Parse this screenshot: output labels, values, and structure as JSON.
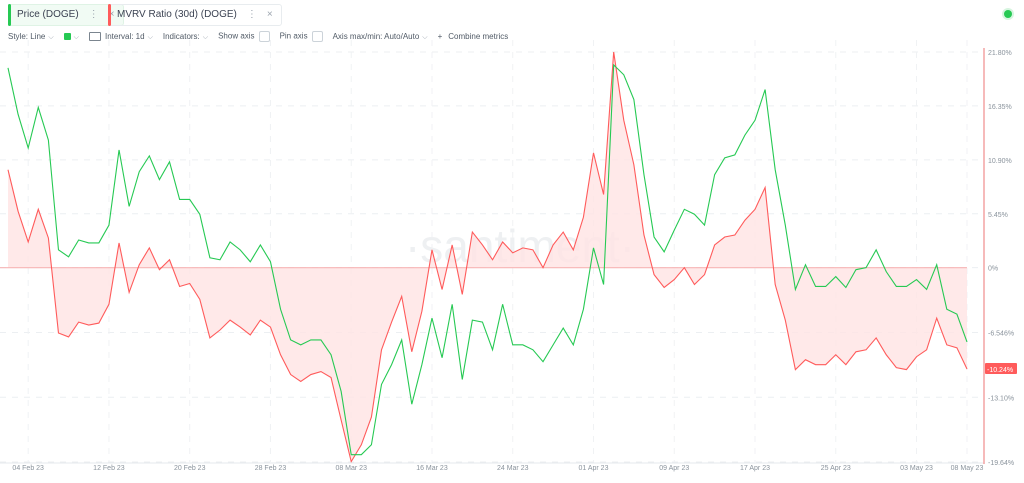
{
  "tabs": [
    {
      "label": "Price (DOGE)",
      "color": "#26c953"
    },
    {
      "label": "MVRV Ratio (30d) (DOGE)",
      "color": "#ff5b5b"
    }
  ],
  "toolbar": {
    "style": "Style: Line",
    "interval": "Interval: 1d",
    "indicators": "Indicators:",
    "show_axis": "Show axis",
    "pin_axis": "Pin axis",
    "axis_maxmin": "Axis max/min: Auto/Auto",
    "combine": "Combine metrics",
    "combine_icon": "+"
  },
  "status_color": "#26c953",
  "watermark": "·santiment·",
  "chart_data": {
    "type": "line",
    "x_start": "2023-02-02",
    "x_end": "2023-05-08",
    "x_ticks": [
      "04 Feb 23",
      "12 Feb 23",
      "20 Feb 23",
      "28 Feb 23",
      "08 Mar 23",
      "16 Mar 23",
      "24 Mar 23",
      "01 Apr 23",
      "09 Apr 23",
      "17 Apr 23",
      "25 Apr 23",
      "03 May 23",
      "08 May 23"
    ],
    "y_ticks": [
      21.8,
      16.35,
      10.9,
      5.45,
      0,
      -6.546,
      -13.1,
      -19.64
    ],
    "y_tick_labels": [
      "21.80%",
      "16.35%",
      "10.90%",
      "5.45%",
      "0%",
      "-6.546%",
      "-13.10%",
      "-19.64%"
    ],
    "ylim": [
      -19.64,
      21.8
    ],
    "last_value_label": "-10.24%",
    "grid": true,
    "series": [
      {
        "name": "MVRV Ratio (30d) (DOGE)",
        "color": "#ff5b5b",
        "fill": "#ffe3e3",
        "values": [
          9.9,
          5.7,
          2.6,
          5.9,
          3.0,
          -6.6,
          -7.0,
          -5.5,
          -5.8,
          -5.6,
          -3.7,
          2.5,
          -2.5,
          0.3,
          2.0,
          -0.2,
          0.8,
          -1.9,
          -1.6,
          -3.2,
          -7.1,
          -6.3,
          -5.3,
          -6.0,
          -6.8,
          -5.3,
          -6.0,
          -8.8,
          -10.8,
          -11.5,
          -10.8,
          -10.5,
          -11.1,
          -15.4,
          -19.6,
          -17.9,
          -15.1,
          -8.3,
          -5.5,
          -2.9,
          -8.5,
          -4.4,
          1.8,
          -2.2,
          2.3,
          -2.7,
          3.6,
          2.3,
          0.8,
          2.6,
          1.5,
          2.0,
          1.8,
          0,
          2.3,
          3.6,
          1.8,
          5.1,
          11.6,
          7.4,
          21.8,
          14.9,
          10.4,
          3.3,
          -0.7,
          -2.0,
          -1.2,
          0,
          -1.7,
          -0.7,
          2.3,
          3.1,
          3.3,
          4.8,
          5.9,
          8.1,
          -1.7,
          -5.3,
          -10.3,
          -9.3,
          -9.8,
          -9.8,
          -8.8,
          -9.8,
          -8.5,
          -8.3,
          -7.1,
          -8.8,
          -10.1,
          -10.3,
          -9.0,
          -8.3,
          -5.1,
          -7.8,
          -8.1,
          -10.24
        ]
      },
      {
        "name": "Price (DOGE)",
        "color": "#26c953",
        "values": [
          20.2,
          15.5,
          12.1,
          16.2,
          12.9,
          1.8,
          1.1,
          2.8,
          2.5,
          2.5,
          4.3,
          11.9,
          6.2,
          9.7,
          11.3,
          8.9,
          10.7,
          6.9,
          6.9,
          5.4,
          1.0,
          0.8,
          2.6,
          1.8,
          0.6,
          2.3,
          0.6,
          -4.2,
          -7.3,
          -7.8,
          -7.3,
          -7.3,
          -8.8,
          -12.5,
          -18.9,
          -18.9,
          -17.9,
          -11.8,
          -9.8,
          -7.3,
          -13.8,
          -9.8,
          -5.1,
          -9.1,
          -3.7,
          -11.3,
          -5.3,
          -5.5,
          -8.3,
          -3.7,
          -7.8,
          -7.8,
          -8.3,
          -9.5,
          -7.8,
          -6.1,
          -7.8,
          -4.2,
          2.0,
          -1.7,
          20.5,
          19.5,
          17.0,
          9.4,
          3.1,
          1.6,
          3.8,
          5.9,
          5.4,
          4.3,
          9.4,
          11.1,
          11.4,
          13.4,
          14.9,
          18.0,
          9.9,
          4.3,
          -2.2,
          0.3,
          -1.9,
          -1.9,
          -0.9,
          -2.0,
          -0.2,
          0,
          1.8,
          -0.4,
          -1.9,
          -1.9,
          -1.2,
          -2.2,
          0.3,
          -4.2,
          -4.7,
          -7.5
        ]
      }
    ]
  }
}
